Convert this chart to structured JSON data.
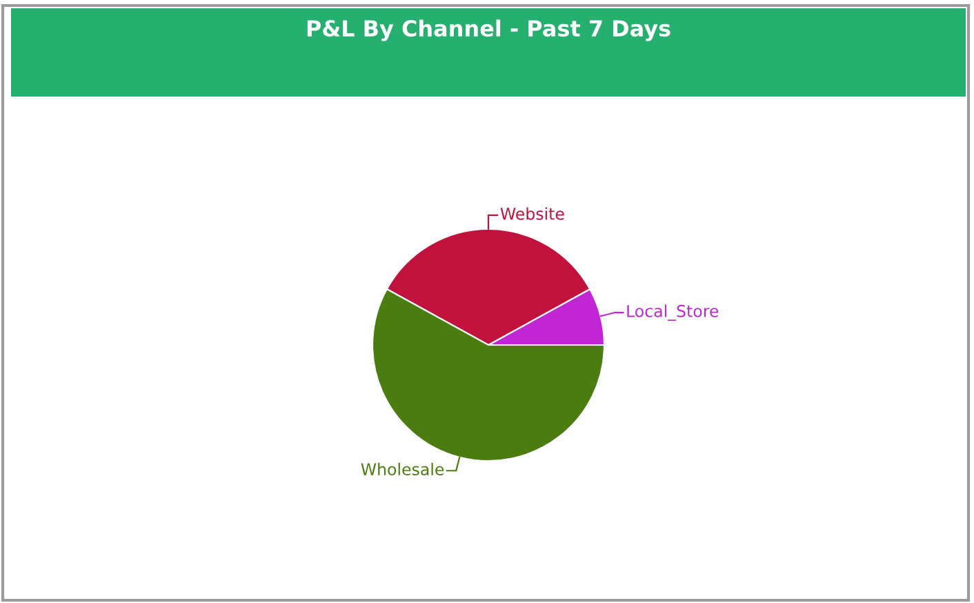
{
  "chart_data": {
    "type": "pie",
    "title": "P&L By Channel - Past 7 Days",
    "categories": [
      "Local_Store",
      "Website",
      "Wholesale"
    ],
    "values": [
      8,
      34,
      58
    ],
    "colors": [
      "#c026d3",
      "#c0123c",
      "#4a7c10"
    ]
  }
}
